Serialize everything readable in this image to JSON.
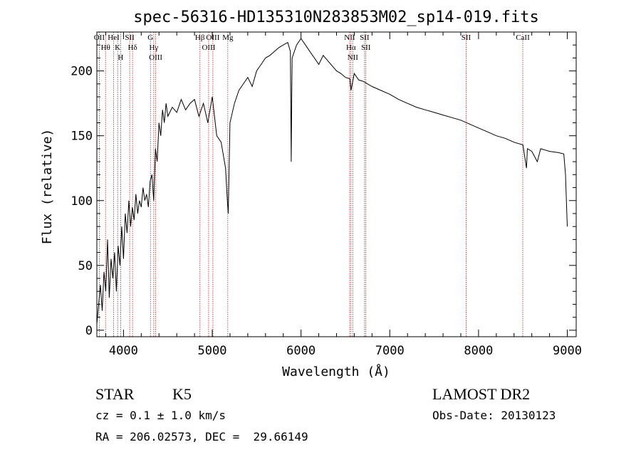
{
  "chart_data": {
    "type": "line",
    "title": "spec-56316-HD135310N283853M02_sp14-019.fits",
    "xlabel": "Wavelength (Å)",
    "ylabel": "Flux (relative)",
    "xlim": [
      3700,
      9100
    ],
    "ylim": [
      -5,
      230
    ],
    "x_ticks": [
      4000,
      5000,
      6000,
      7000,
      8000,
      9000
    ],
    "y_ticks": [
      0,
      50,
      100,
      150,
      200
    ],
    "grid": false,
    "series": [
      {
        "x": [
          3700,
          3720,
          3740,
          3760,
          3780,
          3800,
          3820,
          3840,
          3860,
          3880,
          3900,
          3920,
          3940,
          3960,
          3980,
          4000,
          4020,
          4040,
          4060,
          4080,
          4100,
          4120,
          4140,
          4160,
          4180,
          4200,
          4220,
          4240,
          4260,
          4280,
          4300,
          4320,
          4340,
          4360,
          4380,
          4400,
          4420,
          4440,
          4460,
          4480,
          4500,
          4550,
          4600,
          4650,
          4700,
          4750,
          4800,
          4850,
          4900,
          4950,
          5000,
          5050,
          5100,
          5150,
          5170,
          5180,
          5200,
          5250,
          5300,
          5350,
          5400,
          5450,
          5500,
          5550,
          5600,
          5650,
          5700,
          5750,
          5800,
          5850,
          5880,
          5890,
          5895,
          5900,
          5950,
          6000,
          6050,
          6100,
          6150,
          6200,
          6250,
          6300,
          6350,
          6400,
          6450,
          6500,
          6550,
          6563,
          6600,
          6650,
          6700,
          6750,
          6800,
          6900,
          7000,
          7100,
          7200,
          7300,
          7400,
          7500,
          7600,
          7700,
          7800,
          7900,
          8000,
          8100,
          8200,
          8300,
          8400,
          8500,
          8540,
          8550,
          8600,
          8662,
          8700,
          8800,
          8900,
          8960,
          8980,
          9000
        ],
        "y": [
          5,
          20,
          35,
          15,
          45,
          30,
          70,
          25,
          55,
          40,
          60,
          30,
          65,
          50,
          80,
          55,
          90,
          75,
          100,
          80,
          95,
          85,
          105,
          90,
          100,
          95,
          110,
          100,
          105,
          95,
          115,
          120,
          100,
          140,
          130,
          160,
          150,
          170,
          160,
          175,
          165,
          172,
          168,
          178,
          170,
          175,
          178,
          165,
          175,
          160,
          180,
          150,
          145,
          125,
          100,
          90,
          160,
          175,
          185,
          190,
          195,
          188,
          200,
          205,
          210,
          212,
          215,
          218,
          220,
          222,
          215,
          130,
          180,
          210,
          220,
          225,
          220,
          215,
          210,
          205,
          212,
          208,
          204,
          200,
          198,
          195,
          194,
          185,
          198,
          193,
          192,
          190,
          188,
          185,
          182,
          178,
          175,
          172,
          170,
          168,
          166,
          164,
          162,
          159,
          156,
          153,
          150,
          148,
          145,
          143,
          125,
          140,
          138,
          130,
          140,
          138,
          137,
          136,
          120,
          80
        ]
      }
    ],
    "line_markers": [
      {
        "label": "OII",
        "x": 3727
      },
      {
        "label": "Hθ",
        "x": 3798
      },
      {
        "label": "HeI",
        "x": 3889
      },
      {
        "label": "K",
        "x": 3934
      },
      {
        "label": "H",
        "x": 3968
      },
      {
        "label": "SII",
        "x": 4070
      },
      {
        "label": "Hδ",
        "x": 4102
      },
      {
        "label": "G",
        "x": 4304
      },
      {
        "label": "Hγ",
        "x": 4341
      },
      {
        "label": "OIII",
        "x": 4363
      },
      {
        "label": "Hβ",
        "x": 4861
      },
      {
        "label": "OIII",
        "x": 4959
      },
      {
        "label": "OIII",
        "x": 5007
      },
      {
        "label": "Mg",
        "x": 5175
      },
      {
        "label": "NII",
        "x": 6548
      },
      {
        "label": "Hα",
        "x": 6563
      },
      {
        "label": "NII",
        "x": 6583
      },
      {
        "label": "SII",
        "x": 6716
      },
      {
        "label": "SII",
        "x": 6731
      },
      {
        "label": "SII",
        "x": 7860
      },
      {
        "label": "CaII",
        "x": 8498
      }
    ]
  },
  "info": {
    "object_type": "STAR",
    "subclass": "K5",
    "survey": "LAMOST DR2",
    "cz": "cz = 0.1 ± 1.0 km/s",
    "obs_date": "Obs-Date: 20130123",
    "coords": "RA = 206.02573, DEC =  29.66149"
  },
  "colors": {
    "spectrum": "#000000",
    "marker_line": "#a52a2a",
    "axis": "#000000"
  }
}
